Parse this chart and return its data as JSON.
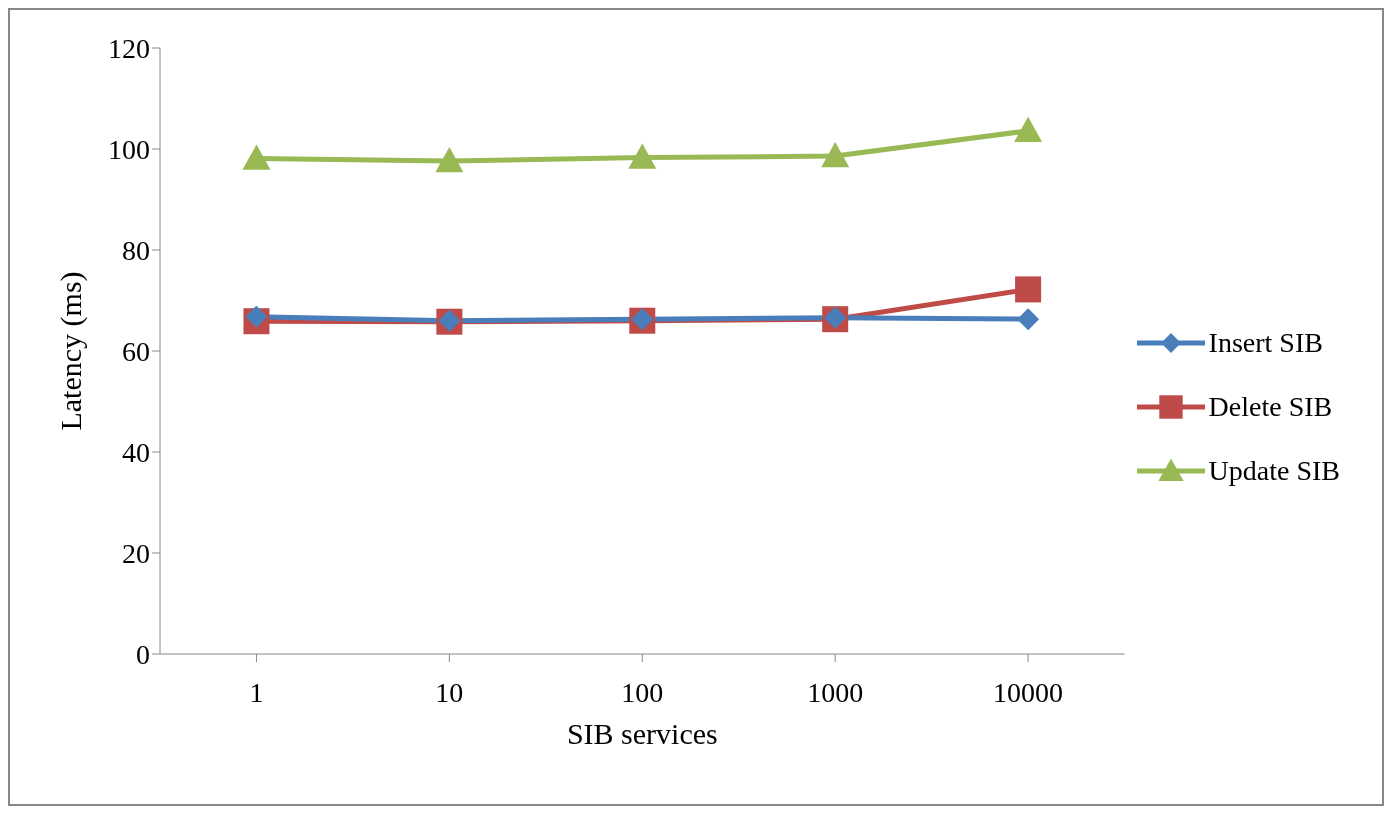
{
  "chart_data": {
    "type": "line",
    "xlabel": "SIB services",
    "ylabel": "Latency (ms)",
    "categories": [
      "1",
      "10",
      "100",
      "1000",
      "10000"
    ],
    "series": [
      {
        "name": "Insert SIB",
        "color": "#4a7ebb",
        "marker": "diamond",
        "values": [
          66.8,
          66,
          66.3,
          66.6,
          66.3
        ]
      },
      {
        "name": "Delete SIB",
        "color": "#be4b48",
        "marker": "square",
        "values": [
          65.9,
          65.8,
          66,
          66.3,
          72.2
        ]
      },
      {
        "name": "Update SIB",
        "color": "#98b954",
        "marker": "triangle",
        "values": [
          98.1,
          97.6,
          98.3,
          98.6,
          103.6
        ]
      }
    ],
    "ylim": [
      0,
      120
    ],
    "yticks": [
      0,
      20,
      40,
      60,
      80,
      100,
      120
    ],
    "grid": false,
    "legend": "right",
    "line_style": "solid"
  }
}
